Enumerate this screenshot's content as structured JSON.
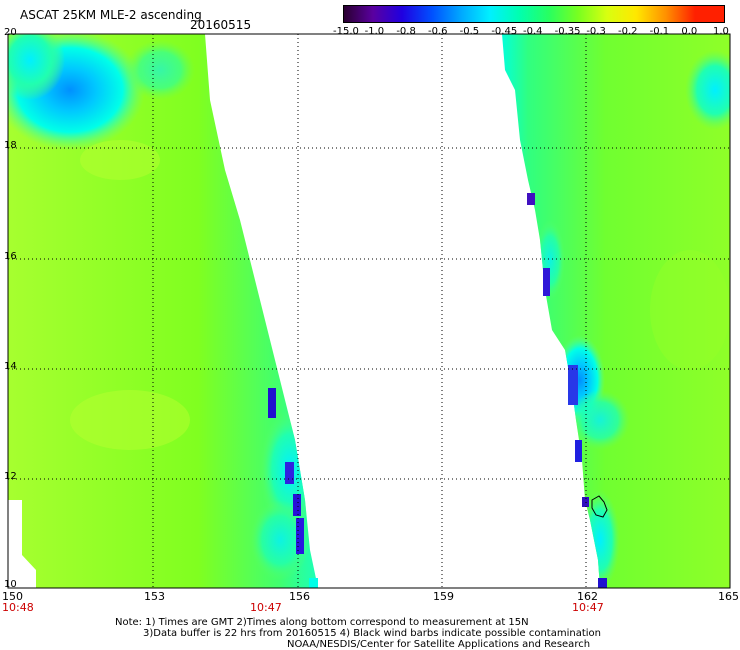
{
  "header": {
    "title": "ASCAT 25KM MLE-2 ascending",
    "date": "20160515"
  },
  "colorbar": {
    "labels": [
      "-15.0",
      "-1.0",
      "-0.8",
      "-0.6",
      "-0.5",
      "-0.45",
      "-0.4",
      "-0.35",
      "-0.3",
      "-0.2",
      "-0.1",
      "0.0",
      "1.0"
    ],
    "colors": [
      "#2a0030",
      "#5a00a0",
      "#2000e0",
      "#0050ff",
      "#00a8ff",
      "#00f0ff",
      "#00ffb0",
      "#28ff60",
      "#78ff20",
      "#d8ff10",
      "#ffe800",
      "#ff9000",
      "#ff2000"
    ]
  },
  "axes": {
    "lon_labels": [
      "150",
      "153",
      "156",
      "159",
      "162",
      "165"
    ],
    "lat_labels": [
      "20",
      "18",
      "16",
      "14",
      "12",
      "10"
    ],
    "time_labels": [
      "10:48",
      "10:47",
      "10:47"
    ]
  },
  "notes": {
    "line1": "Note: 1) Times are GMT 2)Times along bottom correspond to measurement at 15N",
    "line2": "3)Data buffer is 22 hrs from 20160515 4) Black wind barbs indicate possible contamination",
    "line3": "NOAA/NESDIS/Center for Satellite Applications and Research"
  }
}
